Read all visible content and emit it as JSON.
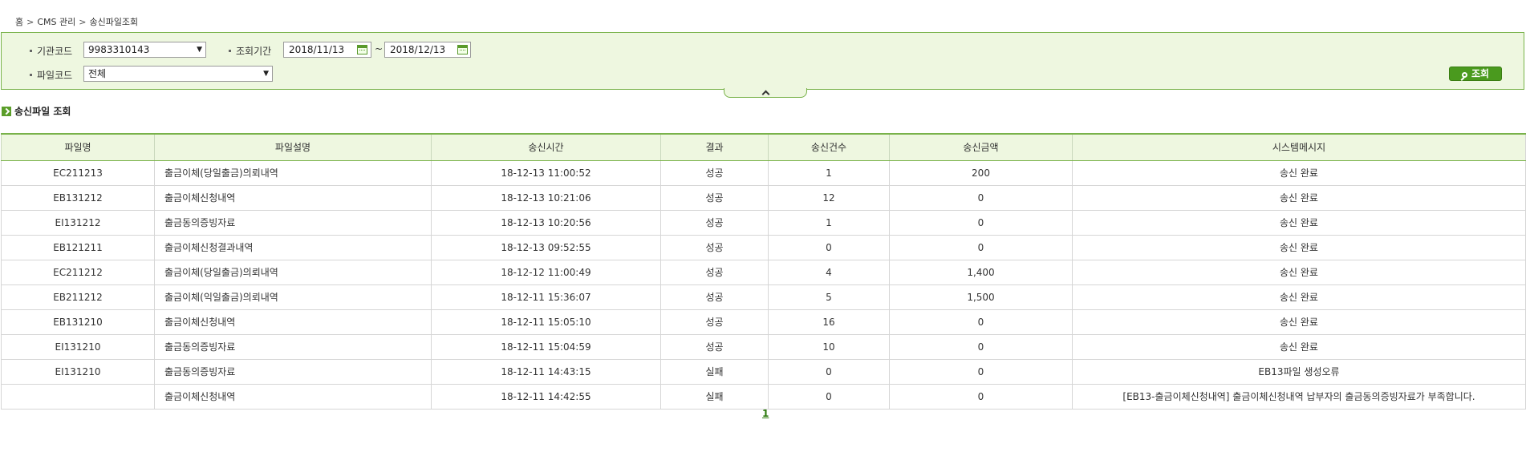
{
  "breadcrumb": {
    "home": "홈",
    "level1": "CMS 관리",
    "level2": "송신파일조회"
  },
  "search": {
    "org_code_label": "기관코드",
    "org_code_value": "9983310143",
    "period_label": "조회기간",
    "date_from": "2018/11/13",
    "date_to": "2018/12/13",
    "tilde": "~",
    "file_code_label": "파일코드",
    "file_code_value": "전체",
    "search_button": "조회"
  },
  "section": {
    "title": "송신파일 조회"
  },
  "table": {
    "headers": [
      "파일명",
      "파일설명",
      "송신시간",
      "결과",
      "송신건수",
      "송신금액",
      "시스템메시지"
    ],
    "rows": [
      [
        "EC211213",
        "출금이체(당일출금)의뢰내역",
        "18-12-13 11:00:52",
        "성공",
        "1",
        "200",
        "송신 완료"
      ],
      [
        "EB131212",
        "출금이체신청내역",
        "18-12-13 10:21:06",
        "성공",
        "12",
        "0",
        "송신 완료"
      ],
      [
        "EI131212",
        "출금동의증빙자료",
        "18-12-13 10:20:56",
        "성공",
        "1",
        "0",
        "송신 완료"
      ],
      [
        "EB121211",
        "출금이체신청결과내역",
        "18-12-13 09:52:55",
        "성공",
        "0",
        "0",
        "송신 완료"
      ],
      [
        "EC211212",
        "출금이체(당일출금)의뢰내역",
        "18-12-12 11:00:49",
        "성공",
        "4",
        "1,400",
        "송신 완료"
      ],
      [
        "EB211212",
        "출금이체(익일출금)의뢰내역",
        "18-12-11 15:36:07",
        "성공",
        "5",
        "1,500",
        "송신 완료"
      ],
      [
        "EB131210",
        "출금이체신청내역",
        "18-12-11 15:05:10",
        "성공",
        "16",
        "0",
        "송신 완료"
      ],
      [
        "EI131210",
        "출금동의증빙자료",
        "18-12-11 15:04:59",
        "성공",
        "10",
        "0",
        "송신 완료"
      ],
      [
        "EI131210",
        "출금동의증빙자료",
        "18-12-11 14:43:15",
        "실패",
        "0",
        "0",
        "EB13파일 생성오류"
      ],
      [
        "",
        "출금이체신청내역",
        "18-12-11 14:42:55",
        "실패",
        "0",
        "0",
        "[EB13-출금이체신청내역] 출금이체신청내역 납부자의 출금동의증빙자료가 부족합니다."
      ]
    ]
  },
  "pagination": {
    "current_page": "1"
  }
}
